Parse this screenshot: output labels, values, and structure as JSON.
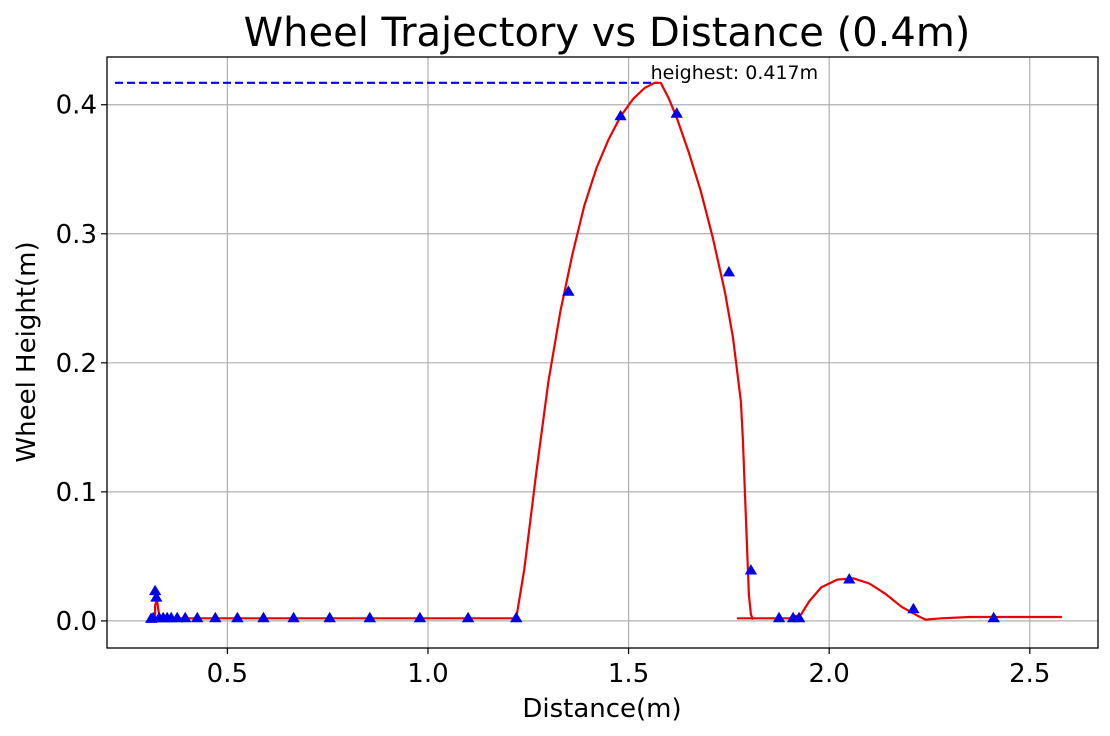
{
  "chart_data": {
    "type": "line",
    "title": "Wheel Trajectory vs Distance (0.4m)",
    "xlabel": "Distance(m)",
    "ylabel": "Wheel Height(m)",
    "xlim": [
      0.2,
      2.67
    ],
    "ylim": [
      -0.021,
      0.437
    ],
    "grid": true,
    "x_ticks": [
      0.5,
      1.0,
      1.5,
      2.0,
      2.5
    ],
    "x_tick_labels": [
      "0.5",
      "1.0",
      "1.5",
      "2.0",
      "2.5"
    ],
    "y_ticks": [
      0.0,
      0.1,
      0.2,
      0.3,
      0.4
    ],
    "y_tick_labels": [
      "0.0",
      "0.1",
      "0.2",
      "0.3",
      "0.4"
    ],
    "colors": {
      "line": "#ee0000",
      "marker": "#0000ee",
      "reference": "#0000ee",
      "grid": "#b0b0b0"
    },
    "series": [
      {
        "style": "line",
        "segments": [
          {
            "x": [
              0.31,
              0.315,
              0.32,
              0.32,
              0.322,
              0.325,
              0.33,
              0.33,
              0.34,
              0.36,
              0.4,
              0.5,
              0.6,
              0.7,
              0.8,
              0.9,
              1.0,
              1.1,
              1.22,
              1.24,
              1.27,
              1.3,
              1.33,
              1.36,
              1.39,
              1.42,
              1.45,
              1.48,
              1.51,
              1.54,
              1.565,
              1.58,
              1.6,
              1.62,
              1.65,
              1.68,
              1.71,
              1.74,
              1.76,
              1.77,
              1.78,
              1.785,
              1.79,
              1.795,
              1.8,
              1.805,
              1.81
            ],
            "y": [
              0.0,
              0.001,
              0.001,
              0.012,
              0.014,
              0.015,
              0.004,
              0.002,
              0.002,
              0.002,
              0.002,
              0.002,
              0.002,
              0.002,
              0.002,
              0.002,
              0.002,
              0.002,
              0.002,
              0.04,
              0.115,
              0.185,
              0.24,
              0.284,
              0.322,
              0.351,
              0.373,
              0.391,
              0.404,
              0.413,
              0.417,
              0.417,
              0.405,
              0.39,
              0.363,
              0.333,
              0.297,
              0.255,
              0.22,
              0.195,
              0.17,
              0.14,
              0.1,
              0.06,
              0.02,
              0.005,
              0.001
            ]
          },
          {
            "x": [
              1.77,
              1.8,
              1.85,
              1.9,
              1.93,
              1.95,
              1.98,
              2.02,
              2.06,
              2.1,
              2.14,
              2.18,
              2.22,
              2.24,
              2.28,
              2.35,
              2.45,
              2.58
            ],
            "y": [
              0.002,
              0.002,
              0.002,
              0.002,
              0.005,
              0.015,
              0.026,
              0.032,
              0.033,
              0.029,
              0.021,
              0.011,
              0.004,
              0.001,
              0.002,
              0.003,
              0.003,
              0.003
            ]
          }
        ]
      },
      {
        "style": "markers",
        "x": [
          0.31,
          0.315,
          0.32,
          0.323,
          0.33,
          0.34,
          0.35,
          0.36,
          0.375,
          0.395,
          0.425,
          0.47,
          0.525,
          0.59,
          0.665,
          0.755,
          0.855,
          0.98,
          1.1,
          1.22,
          1.35,
          1.48,
          1.62,
          1.75,
          1.805,
          1.875,
          1.91,
          1.925,
          2.05,
          2.21,
          2.41
        ],
        "y": [
          0.0015,
          0.002,
          0.023,
          0.018,
          0.002,
          0.002,
          0.002,
          0.002,
          0.002,
          0.002,
          0.002,
          0.002,
          0.002,
          0.002,
          0.002,
          0.002,
          0.002,
          0.002,
          0.002,
          0.002,
          0.255,
          0.391,
          0.393,
          0.27,
          0.039,
          0.002,
          0.002,
          0.002,
          0.032,
          0.009,
          0.002
        ]
      }
    ],
    "reference_line": {
      "y": 0.417,
      "x_from": 0.22,
      "x_to": 1.575
    },
    "annotation": {
      "text": "heighest: 0.417m",
      "x": 1.555,
      "y": 0.417
    }
  }
}
